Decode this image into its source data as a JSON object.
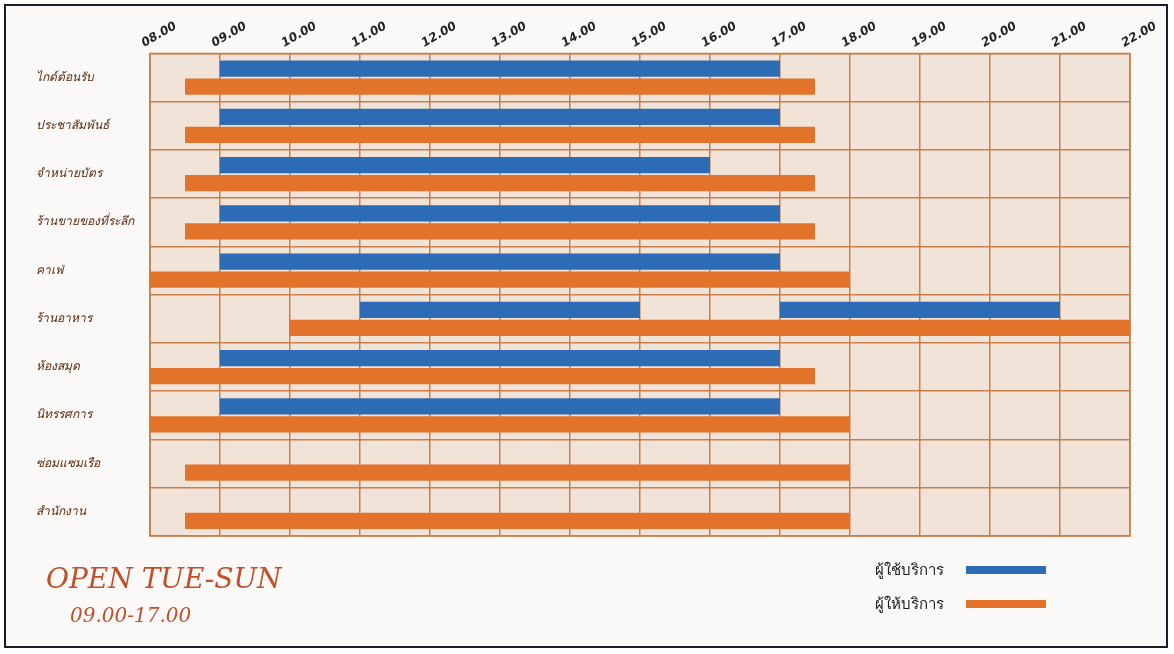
{
  "chart_data": {
    "type": "bar",
    "orientation": "horizontal",
    "categories": [
      "ไกด์ต้อนรับ",
      "ประชาสัมพันธ์",
      "จำหน่ายบัตร",
      "ร้านขายของที่ระลึก",
      "คาเฟ่",
      "ร้านอาหาร",
      "ห้องสมุด",
      "นิทรรศการ",
      "ซ่อมแซมเรือ",
      "สำนักงาน"
    ],
    "series": [
      {
        "name": "ผู้ใช้บริการ",
        "color": "#2e6bb5",
        "base": [
          9,
          9,
          9,
          9,
          9,
          11,
          9,
          9,
          null,
          null
        ],
        "values": [
          8,
          8,
          7,
          8,
          8,
          4,
          8,
          8,
          null,
          null
        ]
      },
      {
        "color": "#2e6bb5",
        "base": [
          null,
          null,
          null,
          null,
          null,
          17,
          null,
          null,
          null,
          null
        ],
        "values": [
          null,
          null,
          null,
          null,
          null,
          4,
          null,
          null,
          null,
          null
        ]
      },
      {
        "name": "ผู้ให้บริการ",
        "color": "#e3732a",
        "base": [
          8.5,
          8.5,
          8.5,
          8.5,
          8,
          10,
          8,
          8,
          8.5,
          8.5
        ],
        "values": [
          9,
          9,
          9,
          9,
          10,
          12,
          9.5,
          10,
          9.5,
          9.5
        ]
      }
    ],
    "xlim": [
      8,
      22
    ],
    "xticks": [
      {
        "value": 8,
        "label": "08.00"
      },
      {
        "value": 9,
        "label": "09.00"
      },
      {
        "value": 10,
        "label": "10.00"
      },
      {
        "value": 11,
        "label": "11.00"
      },
      {
        "value": 12,
        "label": "12.00"
      },
      {
        "value": 13,
        "label": "13.00"
      },
      {
        "value": 14,
        "label": "14.00"
      },
      {
        "value": 15,
        "label": "15.00"
      },
      {
        "value": 16,
        "label": "16.00"
      },
      {
        "value": 17,
        "label": "17.00"
      },
      {
        "value": 18,
        "label": "18.00"
      },
      {
        "value": 19,
        "label": "19.00"
      },
      {
        "value": 20,
        "label": "20.00"
      },
      {
        "value": 21,
        "label": "21.00"
      },
      {
        "value": 22,
        "label": "22.00"
      }
    ],
    "grid": true,
    "legend": "bottom right",
    "annotations": [
      "OPEN TUE-SUN",
      "09.00-17.00"
    ]
  }
}
